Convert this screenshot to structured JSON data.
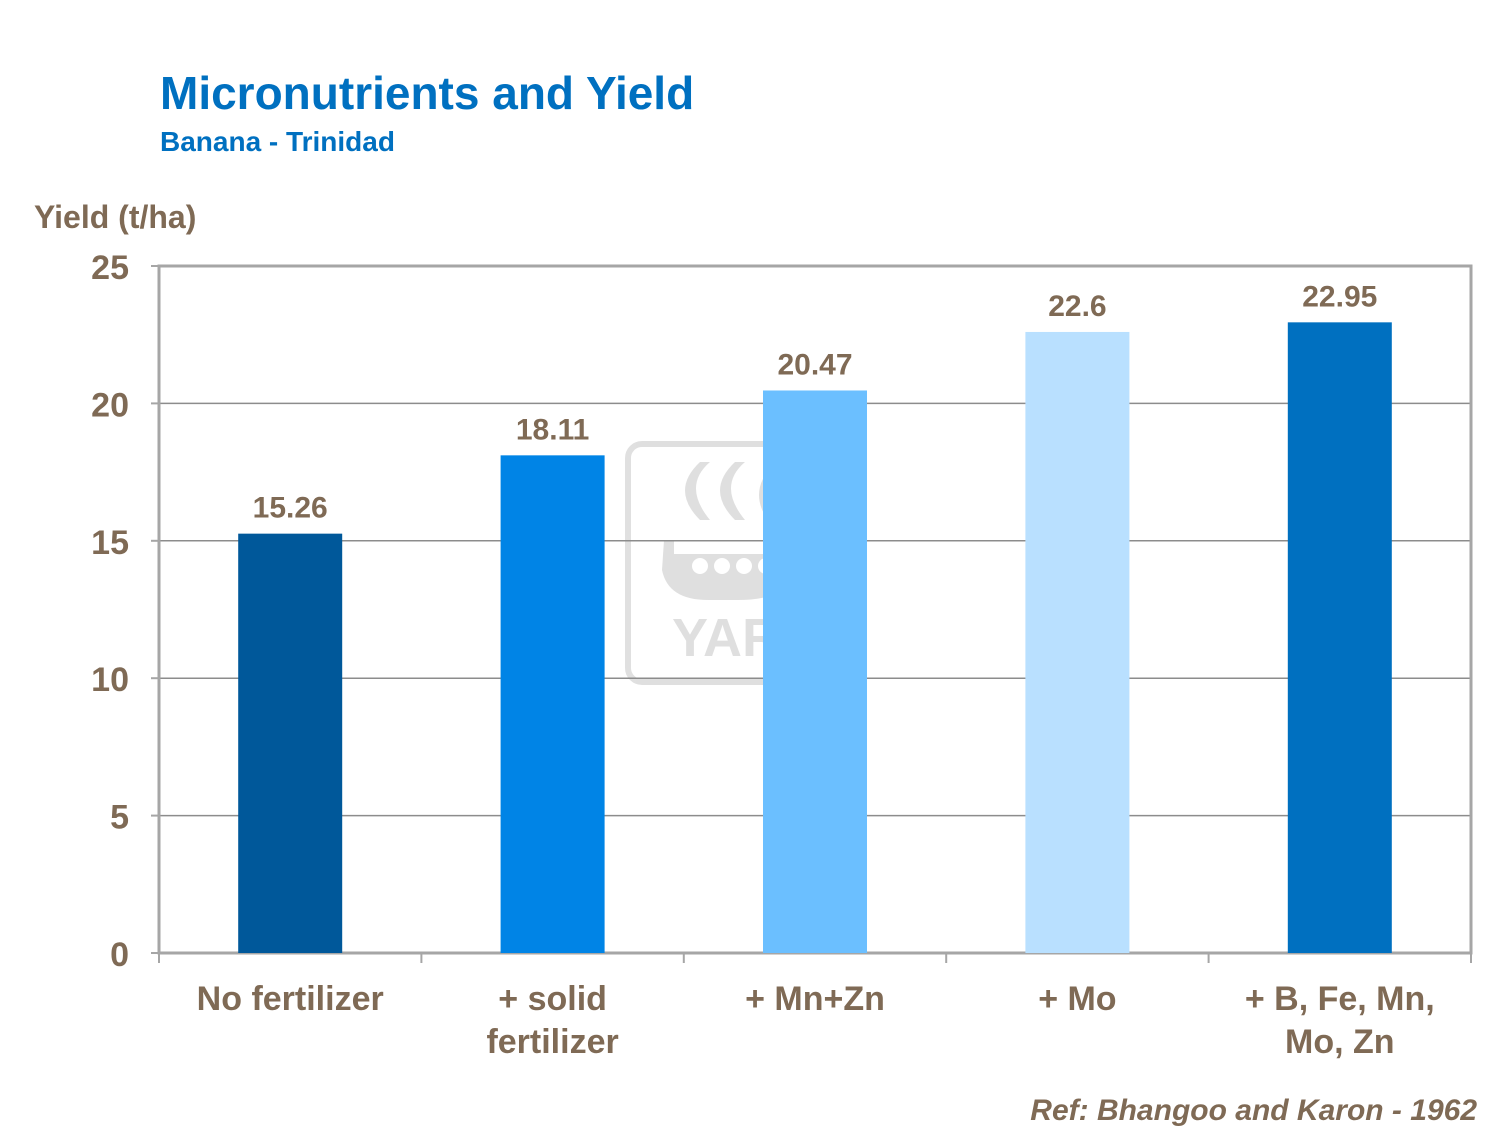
{
  "header": {
    "title": "Micronutrients and Yield",
    "subtitle": "Banana - Trinidad"
  },
  "footer": {
    "reference": "Ref: Bhangoo and Karon - 1962"
  },
  "watermark": {
    "text": "YARA",
    "icon": "yara-viking-ship-logo"
  },
  "chart_data": {
    "type": "bar",
    "title": "Micronutrients and Yield",
    "subtitle": "Banana - Trinidad",
    "xlabel": "",
    "ylabel": "Yield (t/ha)",
    "ylim": [
      0,
      25
    ],
    "yticks": [
      0,
      5,
      10,
      15,
      20,
      25
    ],
    "grid": true,
    "categories": [
      [
        "No fertilizer"
      ],
      [
        "+ solid",
        "fertilizer"
      ],
      [
        "+ Mn+Zn"
      ],
      [
        "+ Mo"
      ],
      [
        "+ B, Fe, Mn,",
        "Mo, Zn"
      ]
    ],
    "values": [
      15.26,
      18.11,
      20.47,
      22.6,
      22.95
    ],
    "data_labels": [
      "15.26",
      "18.11",
      "20.47",
      "22.6",
      "22.95"
    ],
    "colors": [
      "#00589a",
      "#0084e6",
      "#6bbfff",
      "#b9e0ff",
      "#0070c0"
    ],
    "text_color": "#7f6a55",
    "grid_color": "#8c8c8c",
    "frame_color": "#a6a6a6"
  }
}
